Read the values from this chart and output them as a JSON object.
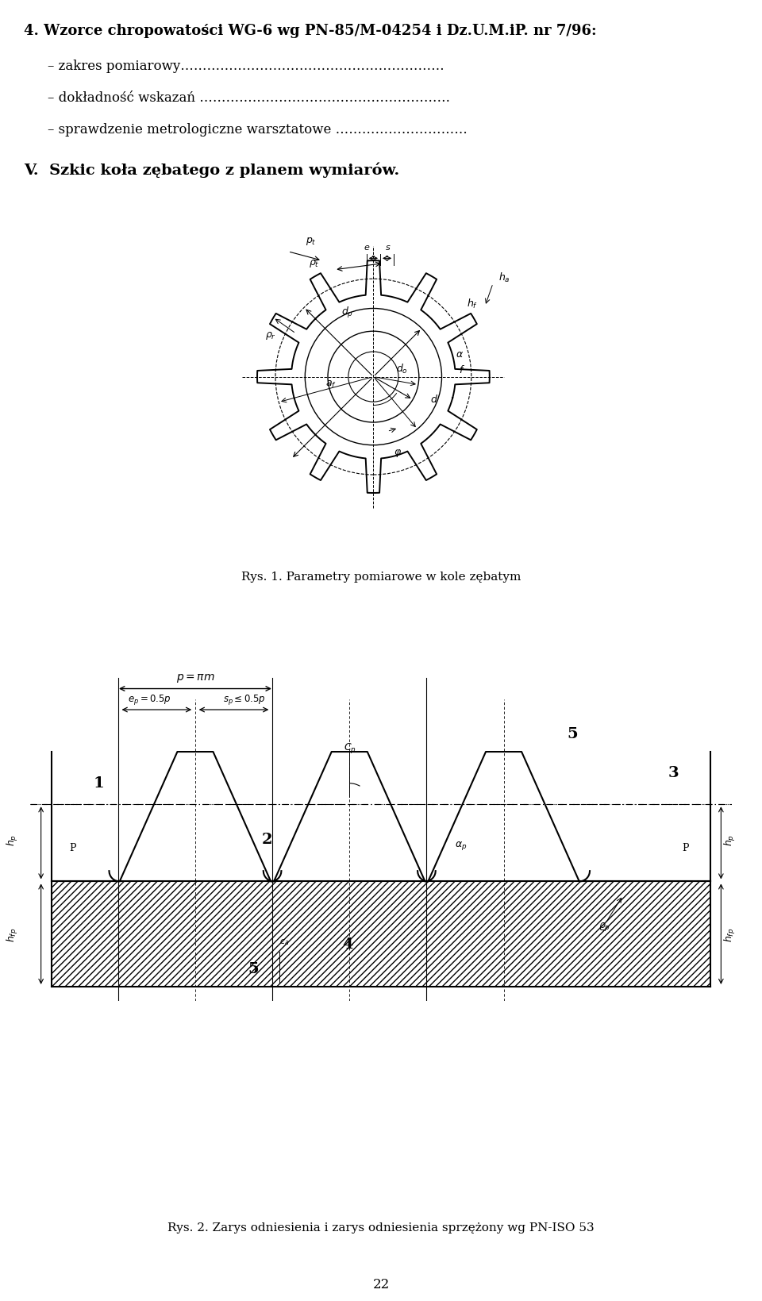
{
  "title_line": "4. Wzorce chropowatości WG-6 wg PN-85/M-04254 i Dz.U.M.iP. nr 7/96:",
  "bullet1": "– zakres pomiarowy……………………………………………………",
  "bullet2": "– dokładność wskazań …………………………………………………",
  "bullet3": "– sprawdzenie metrologiczne warsztatowe …………………………",
  "section_title": "V.  Szkic koła zębatego z planem wymiarów.",
  "caption1": "Rys. 1. Parametry pomiarowe w kole zębatym",
  "caption2": "Rys. 2. Zarys odniesienia i zarys odniesienia sprzężony wg PN-ISO 53",
  "page_number": "22",
  "bg_color": "#ffffff",
  "text_color": "#000000",
  "line_color": "#000000"
}
